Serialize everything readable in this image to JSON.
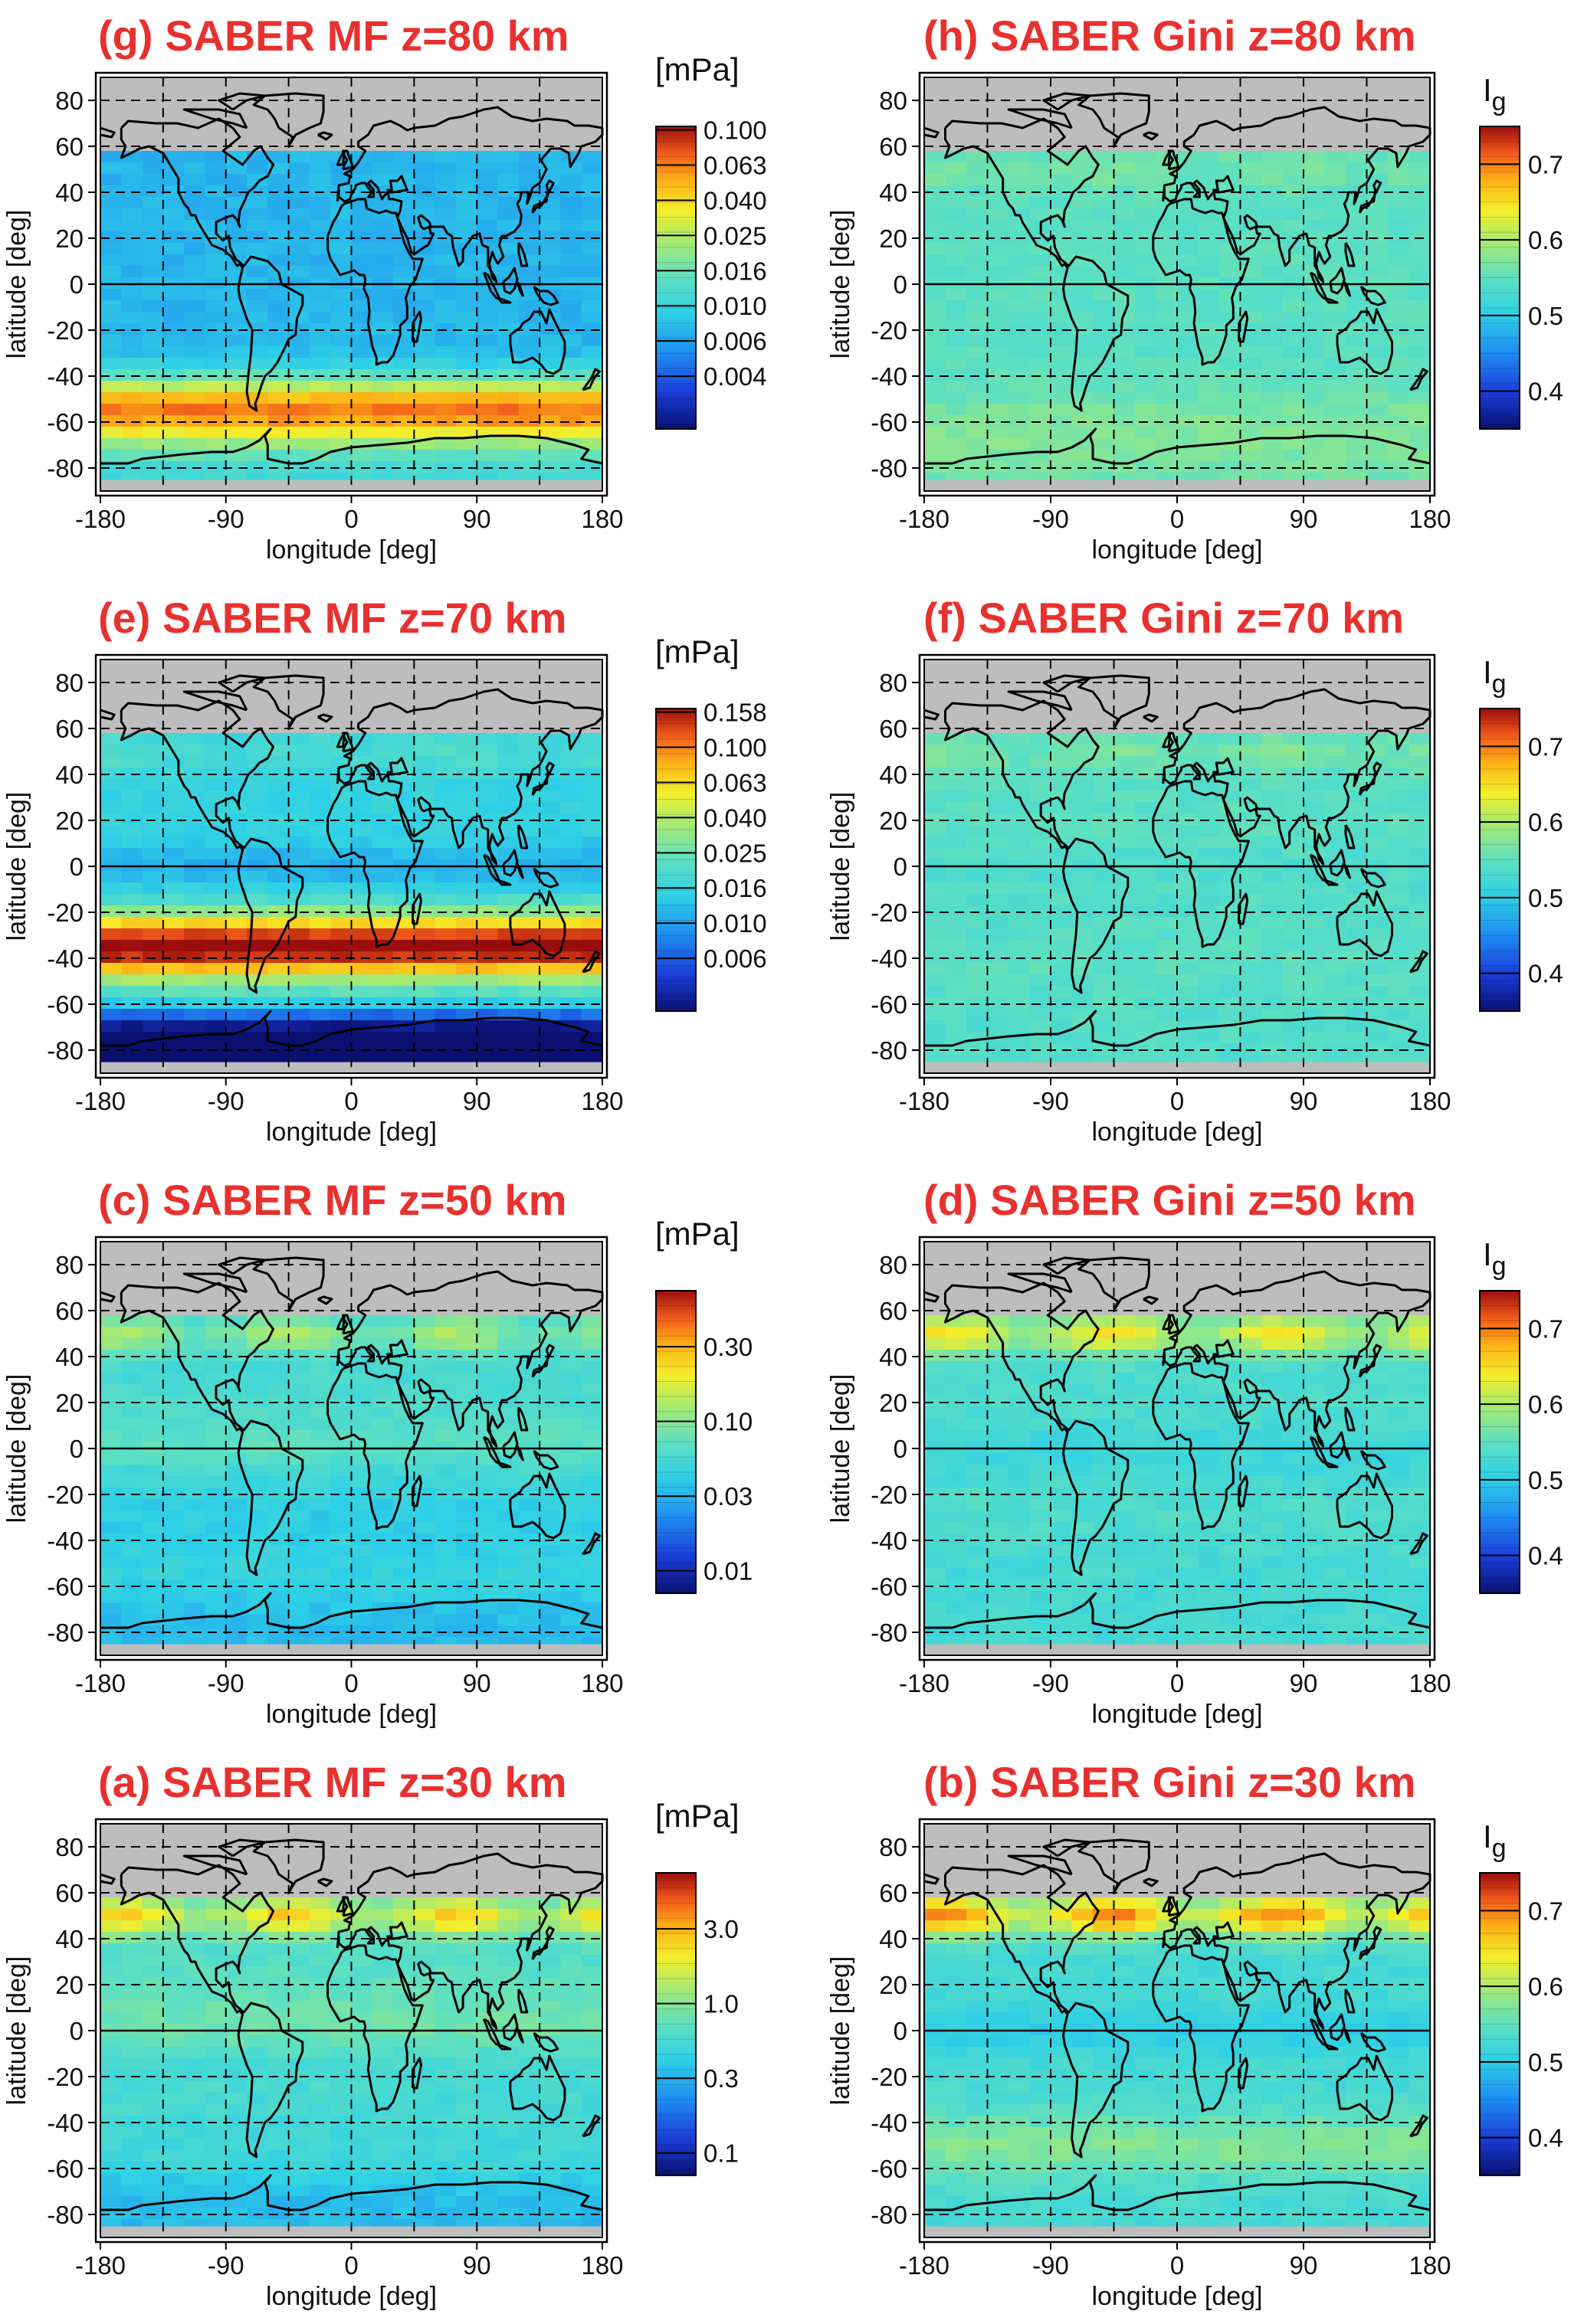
{
  "chart_data": [
    {
      "id": "g",
      "type": "heatmap",
      "title": "(g) SABER MF z=80 km",
      "xlabel": "longitude [deg]",
      "ylabel": "latitude [deg]",
      "xticks": [
        "-180",
        "-90",
        "0",
        "90",
        "180"
      ],
      "yticks": [
        "80",
        "60",
        "40",
        "20",
        "0",
        "-20",
        "-40",
        "-60",
        "-80"
      ],
      "xlim": [
        -180,
        180
      ],
      "ylim": [
        -90,
        90
      ],
      "colorbar": {
        "unit": "[mPa]",
        "scale": "log",
        "ticks": [
          "0.100",
          "0.063",
          "0.040",
          "0.025",
          "0.016",
          "0.010",
          "0.006",
          "0.004"
        ]
      },
      "field": {
        "base": 0.33,
        "nh": 0.0,
        "eq": 0.0,
        "sh": 0.55,
        "shlat": -55,
        "pole": 0.2,
        "land": 0.0
      },
      "missing_above_lat": 58
    },
    {
      "id": "h",
      "type": "heatmap",
      "title": "(h) SABER Gini z=80 km",
      "xlabel": "longitude [deg]",
      "ylabel": "latitude [deg]",
      "xticks": [
        "-180",
        "-90",
        "0",
        "90",
        "180"
      ],
      "yticks": [
        "80",
        "60",
        "40",
        "20",
        "0",
        "-20",
        "-40",
        "-60",
        "-80"
      ],
      "xlim": [
        -180,
        180
      ],
      "ylim": [
        -90,
        90
      ],
      "colorbar": {
        "unit": "I",
        "unit_sub": "g",
        "scale": "linear",
        "ticks": [
          "0.7",
          "0.6",
          "0.5",
          "0.4"
        ]
      },
      "field": {
        "base": 0.49,
        "nh": 0.04,
        "eq": 0.0,
        "sh": 0.06,
        "shlat": -60,
        "pole": 0.08,
        "land": 0.0
      },
      "missing_above_lat": 58
    },
    {
      "id": "e",
      "type": "heatmap",
      "title": "(e) SABER MF z=70 km",
      "xlabel": "longitude [deg]",
      "ylabel": "latitude [deg]",
      "xticks": [
        "-180",
        "-90",
        "0",
        "90",
        "180"
      ],
      "yticks": [
        "80",
        "60",
        "40",
        "20",
        "0",
        "-20",
        "-40",
        "-60",
        "-80"
      ],
      "xlim": [
        -180,
        180
      ],
      "ylim": [
        -90,
        90
      ],
      "colorbar": {
        "unit": "[mPa]",
        "scale": "log",
        "ticks": [
          "0.158",
          "0.100",
          "0.063",
          "0.040",
          "0.025",
          "0.016",
          "0.010",
          "0.006"
        ]
      },
      "field": {
        "base": 0.4,
        "nh": 0.05,
        "eq": -0.08,
        "sh": 0.62,
        "shlat": -35,
        "pole": -1.0,
        "land": 0.0
      },
      "missing_above_lat": 58
    },
    {
      "id": "f",
      "type": "heatmap",
      "title": "(f) SABER Gini z=70 km",
      "xlabel": "longitude [deg]",
      "ylabel": "latitude [deg]",
      "xticks": [
        "-180",
        "-90",
        "0",
        "90",
        "180"
      ],
      "yticks": [
        "80",
        "60",
        "40",
        "20",
        "0",
        "-20",
        "-40",
        "-60",
        "-80"
      ],
      "xlim": [
        -180,
        180
      ],
      "ylim": [
        -90,
        90
      ],
      "colorbar": {
        "unit": "I",
        "unit_sub": "g",
        "scale": "linear",
        "ticks": [
          "0.7",
          "0.6",
          "0.5",
          "0.4"
        ]
      },
      "field": {
        "base": 0.47,
        "nh": 0.06,
        "eq": -0.02,
        "sh": 0.02,
        "shlat": -40,
        "pole": 0.0,
        "land": 0.02
      },
      "missing_above_lat": 58
    },
    {
      "id": "c",
      "type": "heatmap",
      "title": "(c) SABER MF z=50 km",
      "xlabel": "longitude [deg]",
      "ylabel": "latitude [deg]",
      "xticks": [
        "-180",
        "-90",
        "0",
        "90",
        "180"
      ],
      "yticks": [
        "80",
        "60",
        "40",
        "20",
        "0",
        "-20",
        "-40",
        "-60",
        "-80"
      ],
      "xlim": [
        -180,
        180
      ],
      "ylim": [
        -90,
        90
      ],
      "colorbar": {
        "unit": "[mPa]",
        "scale": "log",
        "ticks": [
          "0.30",
          "0.10",
          "0.03",
          "0.01"
        ]
      },
      "field": {
        "base": 0.4,
        "nh": 0.16,
        "eq": 0.05,
        "sh": -0.02,
        "shlat": -30,
        "pole": -0.12,
        "land": 0.06
      },
      "missing_above_lat": 58
    },
    {
      "id": "d",
      "type": "heatmap",
      "title": "(d) SABER Gini z=50 km",
      "xlabel": "longitude [deg]",
      "ylabel": "latitude [deg]",
      "xticks": [
        "-180",
        "-90",
        "0",
        "90",
        "180"
      ],
      "yticks": [
        "80",
        "60",
        "40",
        "20",
        "0",
        "-20",
        "-40",
        "-60",
        "-80"
      ],
      "xlim": [
        -180,
        180
      ],
      "ylim": [
        -90,
        90
      ],
      "colorbar": {
        "unit": "I",
        "unit_sub": "g",
        "scale": "linear",
        "ticks": [
          "0.7",
          "0.6",
          "0.5",
          "0.4"
        ]
      },
      "field": {
        "base": 0.44,
        "nh": 0.22,
        "eq": -0.04,
        "sh": 0.02,
        "shlat": -30,
        "pole": 0.0,
        "land": 0.02
      },
      "missing_above_lat": 58
    },
    {
      "id": "a",
      "type": "heatmap",
      "title": "(a) SABER MF z=30 km",
      "xlabel": "longitude [deg]",
      "ylabel": "latitude [deg]",
      "xticks": [
        "-180",
        "-90",
        "0",
        "90",
        "180"
      ],
      "yticks": [
        "80",
        "60",
        "40",
        "20",
        "0",
        "-20",
        "-40",
        "-60",
        "-80"
      ],
      "xlim": [
        -180,
        180
      ],
      "ylim": [
        -90,
        90
      ],
      "colorbar": {
        "unit": "[mPa]",
        "scale": "log",
        "ticks": [
          "3.0",
          "1.0",
          "0.3",
          "0.1"
        ]
      },
      "field": {
        "base": 0.42,
        "nh": 0.26,
        "eq": 0.05,
        "sh": 0.02,
        "shlat": -30,
        "pole": -0.18,
        "land": 0.08
      },
      "missing_above_lat": 58
    },
    {
      "id": "b",
      "type": "heatmap",
      "title": "(b) SABER Gini z=30 km",
      "xlabel": "longitude [deg]",
      "ylabel": "latitude [deg]",
      "xticks": [
        "-180",
        "-90",
        "0",
        "90",
        "180"
      ],
      "yticks": [
        "80",
        "60",
        "40",
        "20",
        "0",
        "-20",
        "-40",
        "-60",
        "-80"
      ],
      "xlim": [
        -180,
        180
      ],
      "ylim": [
        -90,
        90
      ],
      "colorbar": {
        "unit": "I",
        "unit_sub": "g",
        "scale": "linear",
        "ticks": [
          "0.7",
          "0.6",
          "0.5",
          "0.4"
        ]
      },
      "field": {
        "base": 0.44,
        "nh": 0.32,
        "eq": -0.06,
        "sh": 0.12,
        "shlat": -50,
        "pole": 0.0,
        "land": 0.0
      },
      "missing_above_lat": 58
    }
  ]
}
